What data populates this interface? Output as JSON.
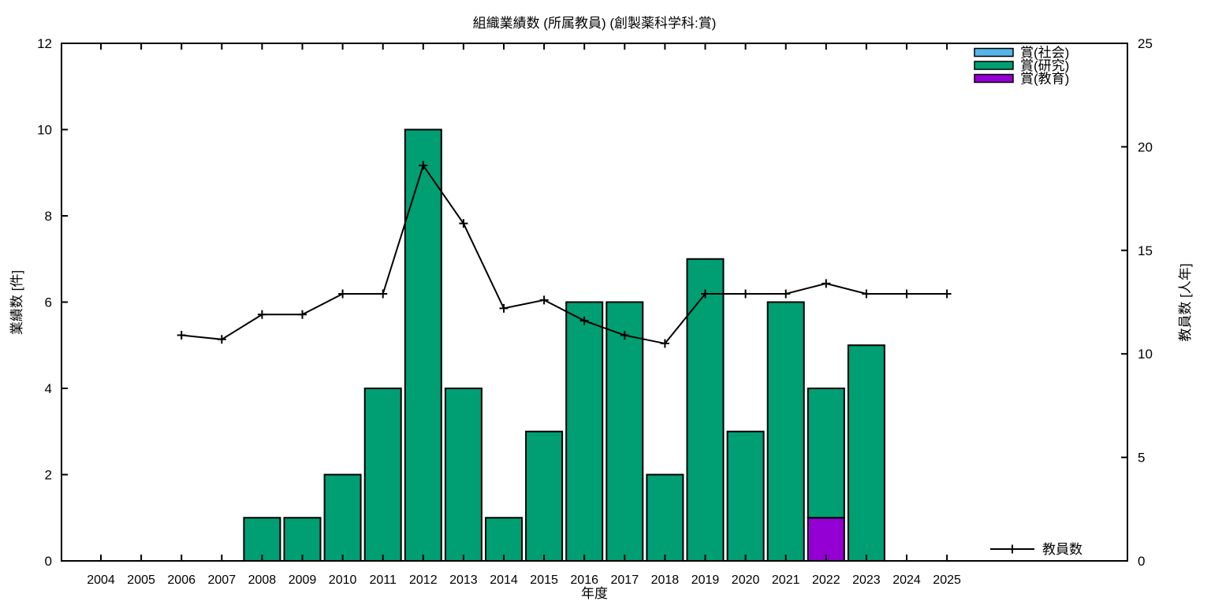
{
  "chart_data": {
    "type": "bar",
    "title": "組織業績数 (所属教員) (創製薬科学科:賞)",
    "xlabel": "年度",
    "ylabel_left": "業績数 [件]",
    "ylabel_right": "教員数 [人年]",
    "ylim_left": [
      0,
      12
    ],
    "yticks_left": [
      0,
      2,
      4,
      6,
      8,
      10,
      12
    ],
    "ylim_right": [
      0,
      25
    ],
    "yticks_right": [
      0,
      5,
      10,
      15,
      20,
      25
    ],
    "grid": false,
    "legend_position_bars": "top-right",
    "legend_position_line": "bottom-right",
    "categories": [
      2004,
      2005,
      2006,
      2007,
      2008,
      2009,
      2010,
      2011,
      2012,
      2013,
      2014,
      2015,
      2016,
      2017,
      2018,
      2019,
      2020,
      2021,
      2022,
      2023,
      2024,
      2025
    ],
    "stack_order_bottom_to_top": [
      "kyoiku",
      "kenkyu",
      "shakai"
    ],
    "series": [
      {
        "key": "shakai",
        "name": "賞(社会)",
        "color": "#56b4e9",
        "values": [
          0,
          0,
          0,
          0,
          0,
          0,
          0,
          0,
          0,
          0,
          0,
          0,
          0,
          0,
          0,
          0,
          0,
          0,
          0,
          0,
          0,
          0
        ]
      },
      {
        "key": "kenkyu",
        "name": "賞(研究)",
        "color": "#009e73",
        "values": [
          0,
          0,
          0,
          0,
          1,
          1,
          2,
          4,
          10,
          4,
          1,
          3,
          6,
          6,
          2,
          7,
          3,
          6,
          3,
          5,
          0,
          0
        ]
      },
      {
        "key": "kyoiku",
        "name": "賞(教育)",
        "color": "#9400d3",
        "values": [
          0,
          0,
          0,
          0,
          0,
          0,
          0,
          0,
          0,
          0,
          0,
          0,
          0,
          0,
          0,
          0,
          0,
          0,
          1,
          0,
          0,
          0
        ]
      }
    ],
    "line_series": {
      "key": "kyoinsu",
      "name": "教員数",
      "color": "#000000",
      "axis": "right",
      "marker": "plus",
      "x": [
        2006,
        2007,
        2008,
        2009,
        2010,
        2011,
        2012,
        2013,
        2014,
        2015,
        2016,
        2017,
        2018,
        2019,
        2020,
        2021,
        2022,
        2023,
        2024,
        2025
      ],
      "values": [
        10.9,
        10.7,
        11.9,
        11.9,
        12.9,
        12.9,
        19.1,
        16.3,
        12.2,
        12.6,
        11.6,
        10.9,
        10.5,
        12.9,
        12.9,
        12.9,
        13.4,
        12.9,
        12.9,
        12.9
      ]
    }
  }
}
